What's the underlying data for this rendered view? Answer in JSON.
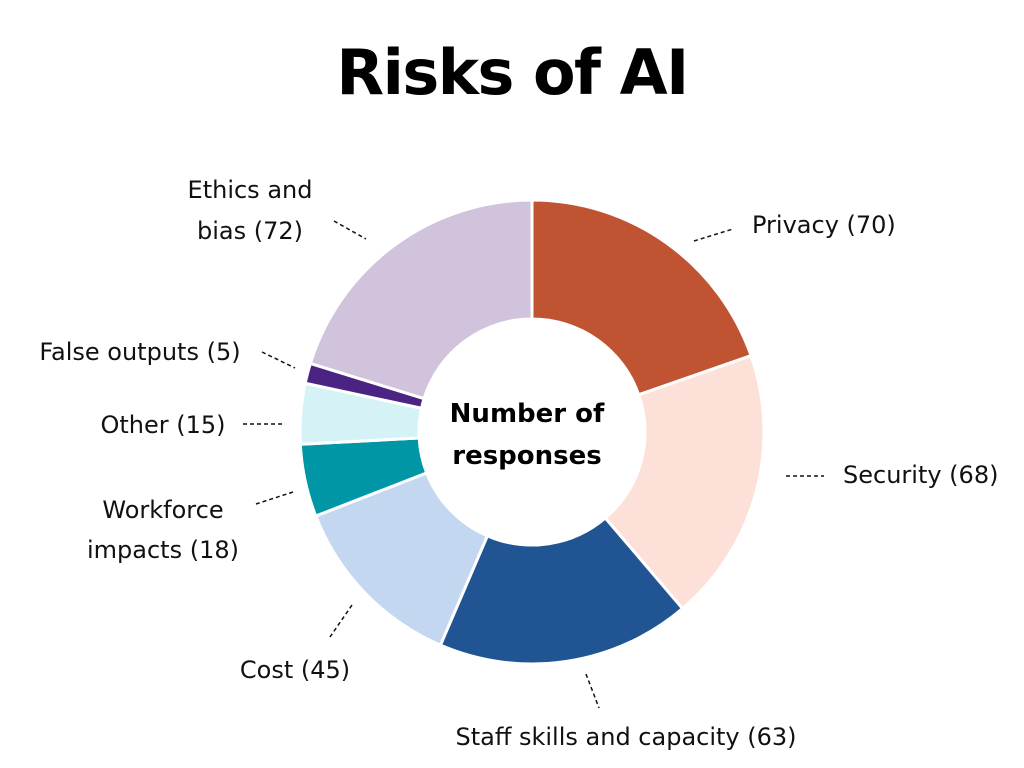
{
  "chart_data": {
    "type": "pie",
    "title": "Risks of AI",
    "center_label": [
      "Number of",
      "responses"
    ],
    "slices": [
      {
        "label": "Privacy (70)",
        "name": "Privacy",
        "value": 70,
        "color": "#c05432"
      },
      {
        "label": "Security (68)",
        "name": "Security",
        "value": 68,
        "color": "#fde1d9"
      },
      {
        "label": "Staff skills and capacity (63)",
        "name": "Staff skills and capacity",
        "value": 63,
        "color": "#205493"
      },
      {
        "label": "Cost (45)",
        "name": "Cost",
        "value": 45,
        "color": "#c3d7f1"
      },
      {
        "label": "Workforce impacts (18)",
        "name": "Workforce impacts",
        "value": 18,
        "color": "#0096a5"
      },
      {
        "label": "Other (15)",
        "name": "Other",
        "value": 15,
        "color": "#d5f3f6"
      },
      {
        "label": "False outputs (5)",
        "name": "False outputs",
        "value": 5,
        "color": "#4b2383"
      },
      {
        "label": "Ethics and bias (72)",
        "name": "Ethics and bias",
        "value": 72,
        "color": "#d1c3db"
      }
    ]
  }
}
